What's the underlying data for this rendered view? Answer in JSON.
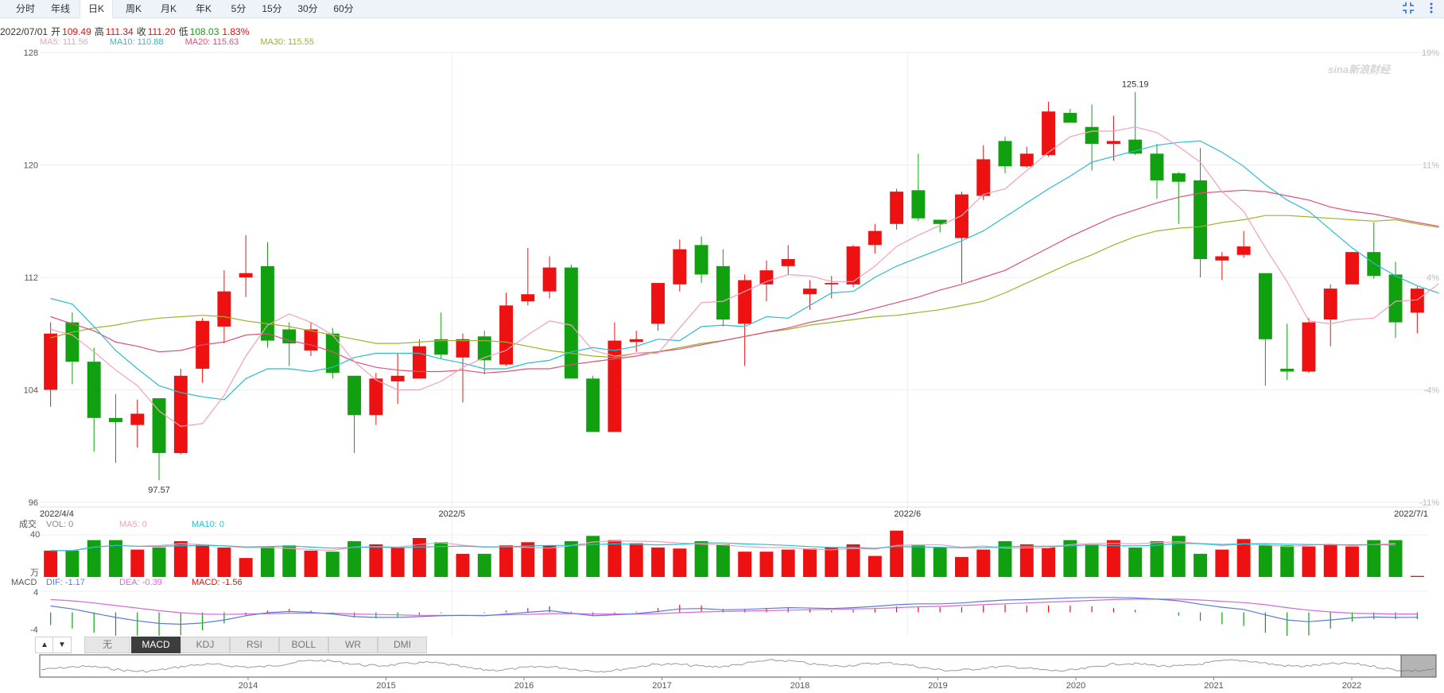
{
  "tabs": [
    {
      "label": "分时",
      "active": false
    },
    {
      "label": "年线",
      "active": false
    },
    {
      "label": "日K",
      "active": true
    },
    {
      "label": "周K",
      "active": false
    },
    {
      "label": "月K",
      "active": false
    },
    {
      "label": "年K",
      "active": false
    },
    {
      "label": "5分",
      "active": false
    },
    {
      "label": "15分",
      "active": false
    },
    {
      "label": "30分",
      "active": false
    },
    {
      "label": "60分",
      "active": false
    }
  ],
  "toolbar_icons": [
    "fullscreen-icon",
    "more-icon"
  ],
  "ohlc_info": {
    "date": "2022/07/01",
    "open_label": "开",
    "open": "109.49",
    "high_label": "高",
    "high": "111.34",
    "close_label": "收",
    "close": "111.20",
    "low_label": "低",
    "low": "108.03",
    "change": "1.83%"
  },
  "ma_legend": [
    {
      "label": "MA5: 111.56",
      "color": "#f4a0b8"
    },
    {
      "label": "MA10: 110.88",
      "color": "#2bbcd0"
    },
    {
      "label": "MA20: 115.63",
      "color": "#e0507a"
    },
    {
      "label": "MA30: 115.55",
      "color": "#9ab52a"
    }
  ],
  "watermark": "sina新浪财经",
  "colors": {
    "up": "#ee1111",
    "down": "#10a010",
    "grid": "#eeeeee",
    "dif": "#5b7bd8",
    "dea": "#d36bd8"
  },
  "chart_data": {
    "type": "candlestick",
    "x_labels": [
      "2022/4/4",
      "2022/5",
      "2022/6",
      "2022/7/1"
    ],
    "y_ticks": [
      "128",
      "120",
      "112",
      "104",
      "96"
    ],
    "y_range": [
      96,
      128
    ],
    "pct_ticks": [
      "19%",
      "11%",
      "4%",
      "-4%",
      "-11%"
    ],
    "max_annotation": "125.19",
    "min_annotation": "97.57",
    "candles": [
      {
        "o": 104,
        "c": 108,
        "h": 108.8,
        "l": 102.8
      },
      {
        "o": 108.8,
        "c": 106,
        "h": 109.5,
        "l": 104.4
      },
      {
        "o": 106,
        "c": 102,
        "h": 107,
        "l": 99.6
      },
      {
        "o": 102,
        "c": 101.7,
        "h": 103.7,
        "l": 98.8
      },
      {
        "o": 101.5,
        "c": 102.3,
        "h": 103.3,
        "l": 99.9
      },
      {
        "o": 103.4,
        "c": 99.5,
        "h": 103.4,
        "l": 97.57
      },
      {
        "o": 99.5,
        "c": 105,
        "h": 105.5,
        "l": 99.4
      },
      {
        "o": 105.5,
        "c": 108.9,
        "h": 109.1,
        "l": 104.5
      },
      {
        "o": 108.5,
        "c": 111,
        "h": 112.5,
        "l": 107.3
      },
      {
        "o": 112,
        "c": 112.3,
        "h": 115,
        "l": 110.6
      },
      {
        "o": 112.8,
        "c": 107.5,
        "h": 114.5,
        "l": 107
      },
      {
        "o": 108.3,
        "c": 107.3,
        "h": 108.8,
        "l": 105.7
      },
      {
        "o": 106.8,
        "c": 108.3,
        "h": 108.8,
        "l": 106.4
      },
      {
        "o": 108,
        "c": 105.2,
        "h": 108.4,
        "l": 104.8
      },
      {
        "o": 105,
        "c": 102.2,
        "h": 105,
        "l": 99.5
      },
      {
        "o": 102.2,
        "c": 104.8,
        "h": 105.2,
        "l": 101.5
      },
      {
        "o": 104.6,
        "c": 105,
        "h": 106.6,
        "l": 103
      },
      {
        "o": 104.8,
        "c": 107.1,
        "h": 107.6,
        "l": 104.8
      },
      {
        "o": 107.6,
        "c": 106.5,
        "h": 109.5,
        "l": 106.2
      },
      {
        "o": 106.3,
        "c": 107.6,
        "h": 108,
        "l": 103.1
      },
      {
        "o": 107.8,
        "c": 106.1,
        "h": 108.2,
        "l": 105.1
      },
      {
        "o": 105.8,
        "c": 110,
        "h": 110.9,
        "l": 105.7
      },
      {
        "o": 110.3,
        "c": 110.8,
        "h": 114.1,
        "l": 110
      },
      {
        "o": 111,
        "c": 112.7,
        "h": 113.5,
        "l": 110.5
      },
      {
        "o": 112.7,
        "c": 104.8,
        "h": 112.9,
        "l": 104.8
      },
      {
        "o": 104.8,
        "c": 101,
        "h": 105,
        "l": 101
      },
      {
        "o": 101,
        "c": 107.5,
        "h": 108.8,
        "l": 101
      },
      {
        "o": 107.4,
        "c": 107.6,
        "h": 108.2,
        "l": 106.7
      },
      {
        "o": 108.7,
        "c": 111.6,
        "h": 111.6,
        "l": 108.2
      },
      {
        "o": 111.5,
        "c": 114,
        "h": 114.7,
        "l": 111
      },
      {
        "o": 114.3,
        "c": 112.2,
        "h": 114.9,
        "l": 111.6
      },
      {
        "o": 112.8,
        "c": 109,
        "h": 114,
        "l": 108.5
      },
      {
        "o": 108.7,
        "c": 111.8,
        "h": 112.2,
        "l": 105.7
      },
      {
        "o": 111.5,
        "c": 112.5,
        "h": 113.2,
        "l": 110.3
      },
      {
        "o": 112.8,
        "c": 113.3,
        "h": 114.3,
        "l": 112.2
      },
      {
        "o": 110.8,
        "c": 111.2,
        "h": 111.8,
        "l": 109.7
      },
      {
        "o": 111.5,
        "c": 111.6,
        "h": 112.1,
        "l": 110.5
      },
      {
        "o": 111.5,
        "c": 114.2,
        "h": 114.3,
        "l": 111.3
      },
      {
        "o": 114.3,
        "c": 115.3,
        "h": 115.8,
        "l": 113.7
      },
      {
        "o": 115.8,
        "c": 118.1,
        "h": 118.3,
        "l": 115.4
      },
      {
        "o": 118.2,
        "c": 116.2,
        "h": 120.8,
        "l": 116
      },
      {
        "o": 116.1,
        "c": 115.8,
        "h": 116.1,
        "l": 115.2
      },
      {
        "o": 114.8,
        "c": 117.9,
        "h": 118.1,
        "l": 111.6
      },
      {
        "o": 117.8,
        "c": 120.4,
        "h": 121.4,
        "l": 117.5
      },
      {
        "o": 121.7,
        "c": 119.9,
        "h": 122,
        "l": 119.4
      },
      {
        "o": 119.9,
        "c": 120.8,
        "h": 121.3,
        "l": 119.8
      },
      {
        "o": 120.7,
        "c": 123.8,
        "h": 124.5,
        "l": 120.6
      },
      {
        "o": 123.7,
        "c": 123,
        "h": 124,
        "l": 123
      },
      {
        "o": 122.7,
        "c": 121.5,
        "h": 124.3,
        "l": 119.6
      },
      {
        "o": 121.5,
        "c": 121.7,
        "h": 123.5,
        "l": 120.3
      },
      {
        "o": 121.8,
        "c": 120.8,
        "h": 125.19,
        "l": 120.7
      },
      {
        "o": 120.8,
        "c": 118.9,
        "h": 121.5,
        "l": 117.6
      },
      {
        "o": 119.4,
        "c": 118.8,
        "h": 119.5,
        "l": 115.8
      },
      {
        "o": 118.9,
        "c": 113.3,
        "h": 121.2,
        "l": 112
      },
      {
        "o": 113.2,
        "c": 113.5,
        "h": 113.8,
        "l": 111.8
      },
      {
        "o": 113.6,
        "c": 114.2,
        "h": 115.3,
        "l": 113.4
      },
      {
        "o": 112.3,
        "c": 107.6,
        "h": 112.3,
        "l": 104.3
      },
      {
        "o": 105.5,
        "c": 105.3,
        "h": 108.7,
        "l": 104.7
      },
      {
        "o": 105.3,
        "c": 108.8,
        "h": 109.1,
        "l": 105.2
      },
      {
        "o": 109,
        "c": 111.2,
        "h": 111.5,
        "l": 107.1
      },
      {
        "o": 111.5,
        "c": 113.8,
        "h": 113.8,
        "l": 111.5
      },
      {
        "o": 113.8,
        "c": 112.1,
        "h": 115.9,
        "l": 111.9
      },
      {
        "o": 112.2,
        "c": 108.8,
        "h": 113.1,
        "l": 107.7
      },
      {
        "o": 109.49,
        "c": 111.2,
        "h": 111.34,
        "l": 108.03
      }
    ],
    "ma5": [
      108.3,
      107.9,
      106.7,
      105.4,
      104.3,
      102.5,
      101.4,
      101.6,
      103.6,
      106.4,
      108.6,
      109.4,
      108.8,
      107.9,
      106,
      104.7,
      104,
      104,
      104.6,
      105.6,
      106.3,
      106.8,
      107.9,
      108.9,
      108.6,
      106.8,
      106.4,
      106.6,
      106.6,
      108.4,
      110.2,
      110.3,
      111,
      111.7,
      112.2,
      112.1,
      111.7,
      111.7,
      112.8,
      114.2,
      115,
      115.7,
      116.4,
      117.9,
      118.3,
      119.6,
      120.9,
      122,
      122.4,
      122.4,
      122.7,
      122.3,
      121.3,
      120.2,
      118.1,
      116.7,
      114.1,
      111.7,
      108.9,
      108.7,
      109,
      109.1,
      110.3,
      110.4,
      111.56
    ],
    "ma10": [
      110.5,
      110.1,
      108.5,
      106.8,
      105.5,
      104.3,
      103.8,
      103.5,
      103.3,
      104.8,
      105.5,
      105.5,
      105.3,
      105.6,
      106.3,
      106.6,
      106.6,
      106.6,
      106.2,
      105.9,
      105.5,
      105.5,
      105.9,
      106.1,
      106.7,
      107,
      106.8,
      107.1,
      107.6,
      107.5,
      108.5,
      108.6,
      108.5,
      109.2,
      109.1,
      110,
      110.9,
      111,
      112,
      112.8,
      113.4,
      114,
      114.6,
      115.3,
      116.3,
      117.3,
      118.3,
      119.2,
      120.2,
      120.6,
      121,
      121.4,
      121.6,
      121.7,
      120.9,
      119.9,
      118.6,
      117.5,
      116.7,
      115.4,
      114.1,
      113,
      112.1,
      111.4,
      110.88
    ],
    "ma20": [
      109.2,
      108.7,
      108.2,
      107.4,
      107.1,
      106.7,
      106.8,
      107.2,
      107.4,
      107.9,
      108,
      107.5,
      107.2,
      106.7,
      106,
      105.6,
      105.4,
      105.3,
      105.3,
      105.4,
      105.2,
      105.3,
      105.5,
      105.5,
      105.8,
      106,
      106.2,
      106.4,
      106.7,
      106.9,
      107.2,
      107.5,
      107.8,
      108.1,
      108.4,
      108.8,
      109.1,
      109.4,
      109.8,
      110.2,
      110.6,
      111.1,
      111.5,
      112,
      112.5,
      113.3,
      114.1,
      114.9,
      115.6,
      116.3,
      116.8,
      117.3,
      117.7,
      118,
      118.1,
      118.2,
      118.1,
      117.8,
      117.5,
      117,
      116.7,
      116.5,
      116.2,
      115.9,
      115.63
    ],
    "ma30": [
      107.7,
      108.1,
      108.4,
      108.6,
      108.9,
      109.1,
      109.2,
      109.3,
      109.2,
      108.9,
      108.7,
      108.5,
      108.2,
      107.9,
      107.6,
      107.3,
      107.3,
      107.4,
      107.5,
      107.5,
      107.5,
      107.4,
      107.1,
      106.8,
      106.6,
      106.4,
      106.3,
      106.6,
      106.7,
      107,
      107.3,
      107.5,
      107.8,
      108.1,
      108.3,
      108.6,
      108.8,
      109,
      109.2,
      109.3,
      109.5,
      109.7,
      110,
      110.3,
      110.9,
      111.6,
      112.3,
      113,
      113.6,
      114.3,
      114.9,
      115.3,
      115.5,
      115.6,
      115.9,
      116.1,
      116.4,
      116.4,
      116.3,
      116.2,
      116.1,
      116,
      116.1,
      115.8,
      115.55
    ],
    "volume": {
      "label": "成交",
      "vol_label": "VOL: 0",
      "ma5_label": "MA5: 0",
      "ma10_label": "MA10: 0",
      "y_top": "40",
      "unit": "万",
      "values": [
        25,
        25,
        35,
        35,
        26,
        28,
        34,
        31,
        28,
        18,
        29,
        30,
        25,
        24,
        34,
        31,
        28,
        37,
        33,
        22,
        22,
        30,
        33,
        30,
        34,
        39,
        35,
        32,
        28,
        27,
        34,
        31,
        24,
        24,
        26,
        27,
        28,
        31,
        20,
        44,
        30,
        28,
        19,
        26,
        34,
        31,
        28,
        35,
        31,
        35,
        28,
        34,
        39,
        22,
        26,
        36,
        30,
        30,
        29,
        31,
        29,
        35,
        35,
        1
      ]
    },
    "macd": {
      "label": "MACD",
      "dif_label": "DIF: -1.17",
      "dea_label": "DEA: -0.39",
      "macd_label": "MACD: -1.56",
      "y_top": "4",
      "y_bottom": "-4",
      "dif": [
        1.5,
        0.8,
        -0.2,
        -1.2,
        -2,
        -2.6,
        -2.8,
        -2.5,
        -1.8,
        -0.8,
        -0.1,
        0.2,
        0,
        -0.4,
        -1,
        -1.2,
        -1.2,
        -1,
        -0.8,
        -0.7,
        -0.8,
        -0.4,
        0,
        0.4,
        -0.2,
        -0.8,
        -0.6,
        -0.3,
        0.2,
        0.8,
        0.9,
        0.6,
        0.7,
        0.9,
        1.1,
        1,
        0.9,
        1.1,
        1.4,
        1.8,
        2,
        2,
        2.2,
        2.6,
        2.9,
        3,
        3.2,
        3.4,
        3.5,
        3.5,
        3.4,
        3.1,
        2.7,
        1.9,
        1.2,
        0.7,
        -0.6,
        -1.8,
        -2.2,
        -1.8,
        -1.3,
        -1.1,
        -1.2,
        -1.17
      ],
      "dea": [
        3,
        2.7,
        2.2,
        1.6,
        1,
        0.4,
        -0.1,
        -0.4,
        -0.5,
        -0.4,
        -0.3,
        -0.2,
        -0.2,
        -0.2,
        -0.4,
        -0.5,
        -0.6,
        -0.7,
        -0.7,
        -0.7,
        -0.7,
        -0.6,
        -0.5,
        -0.3,
        -0.3,
        -0.4,
        -0.4,
        -0.4,
        -0.3,
        -0.1,
        0.1,
        0.2,
        0.3,
        0.4,
        0.5,
        0.6,
        0.7,
        0.8,
        0.9,
        1.1,
        1.3,
        1.4,
        1.6,
        1.8,
        2,
        2.2,
        2.4,
        2.6,
        2.8,
        3,
        3.1,
        3.1,
        3.1,
        2.9,
        2.6,
        2.3,
        1.8,
        1.1,
        0.5,
        0.1,
        -0.2,
        -0.3,
        -0.4,
        -0.39
      ]
    },
    "navigator_years": [
      "2014",
      "2015",
      "2016",
      "2017",
      "2018",
      "2019",
      "2020",
      "2021",
      "2022"
    ]
  },
  "indicator_buttons": [
    {
      "label": "▲",
      "active": false
    },
    {
      "label": "▼",
      "active": false
    },
    {
      "label": "无",
      "active": false
    },
    {
      "label": "MACD",
      "active": true
    },
    {
      "label": "KDJ",
      "active": false
    },
    {
      "label": "RSI",
      "active": false
    },
    {
      "label": "BOLL",
      "active": false
    },
    {
      "label": "WR",
      "active": false
    },
    {
      "label": "DMI",
      "active": false
    }
  ]
}
